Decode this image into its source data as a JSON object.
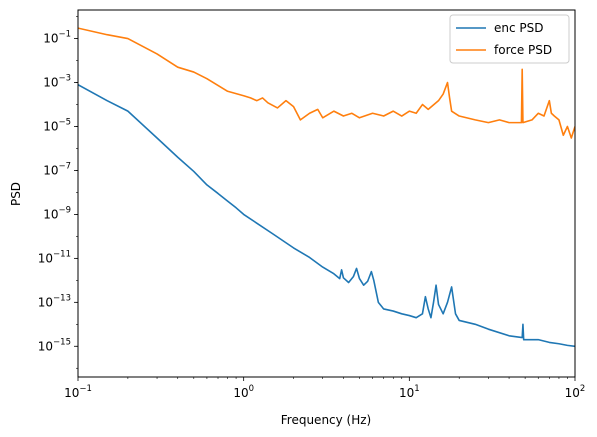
{
  "chart_data": {
    "type": "line",
    "xscale": "log",
    "yscale": "log",
    "xlim": [
      0.1,
      100
    ],
    "ylim": [
      4e-17,
      2
    ],
    "xlabel": "Frequency (Hz)",
    "ylabel": "PSD",
    "grid": false,
    "legend_position": "top-right",
    "x_ticks": [
      {
        "base": "10",
        "exp": "−1",
        "value": 0.1
      },
      {
        "base": "10",
        "exp": "0",
        "value": 1
      },
      {
        "base": "10",
        "exp": "1",
        "value": 10
      },
      {
        "base": "10",
        "exp": "2",
        "value": 100
      }
    ],
    "y_ticks": [
      {
        "base": "10",
        "exp": "−1",
        "value": 0.1
      },
      {
        "base": "10",
        "exp": "−3",
        "value": 0.001
      },
      {
        "base": "10",
        "exp": "−5",
        "value": 1e-05
      },
      {
        "base": "10",
        "exp": "−7",
        "value": 1e-07
      },
      {
        "base": "10",
        "exp": "−9",
        "value": 1e-09
      },
      {
        "base": "10",
        "exp": "−11",
        "value": 1e-11
      },
      {
        "base": "10",
        "exp": "−13",
        "value": 1e-13
      },
      {
        "base": "10",
        "exp": "−15",
        "value": 1e-15
      }
    ],
    "series": [
      {
        "name": "enc PSD",
        "color": "#1f77b4",
        "points": [
          [
            0.1,
            0.0008
          ],
          [
            0.15,
            0.00015
          ],
          [
            0.2,
            5e-05
          ],
          [
            0.3,
            3e-06
          ],
          [
            0.4,
            4e-07
          ],
          [
            0.5,
            9e-08
          ],
          [
            0.6,
            2.2e-08
          ],
          [
            0.7,
            9e-09
          ],
          [
            0.8,
            4e-09
          ],
          [
            0.9,
            2e-09
          ],
          [
            1.0,
            1e-09
          ],
          [
            1.2,
            4e-10
          ],
          [
            1.5,
            1.3e-10
          ],
          [
            2.0,
            3e-11
          ],
          [
            2.5,
            1.1e-11
          ],
          [
            3.0,
            4e-12
          ],
          [
            3.5,
            2e-12
          ],
          [
            3.8,
            1.2e-12
          ],
          [
            3.9,
            3e-12
          ],
          [
            4.0,
            1.3e-12
          ],
          [
            4.3,
            8e-13
          ],
          [
            4.6,
            1.5e-12
          ],
          [
            4.8,
            3.5e-12
          ],
          [
            5.0,
            1.2e-12
          ],
          [
            5.3,
            6e-13
          ],
          [
            5.6,
            9e-13
          ],
          [
            5.9,
            2.5e-12
          ],
          [
            6.1,
            1e-12
          ],
          [
            6.5,
            1e-13
          ],
          [
            7.0,
            5e-14
          ],
          [
            8.0,
            4e-14
          ],
          [
            9.0,
            3e-14
          ],
          [
            10.0,
            2.5e-14
          ],
          [
            11.0,
            2e-14
          ],
          [
            12.0,
            3e-14
          ],
          [
            12.5,
            1.8e-13
          ],
          [
            13.0,
            5e-14
          ],
          [
            13.5,
            2e-14
          ],
          [
            14.0,
            1e-13
          ],
          [
            14.5,
            6e-13
          ],
          [
            15.0,
            8e-14
          ],
          [
            16.0,
            3e-14
          ],
          [
            17.0,
            1e-13
          ],
          [
            18.0,
            5e-13
          ],
          [
            19.0,
            3e-14
          ],
          [
            20.0,
            1.5e-14
          ],
          [
            25.0,
            1e-14
          ],
          [
            30.0,
            6e-15
          ],
          [
            40.0,
            3e-15
          ],
          [
            48.0,
            2.5e-15
          ],
          [
            48.5,
            1e-14
          ],
          [
            49.0,
            2e-15
          ],
          [
            60.0,
            2e-15
          ],
          [
            70.0,
            1.5e-15
          ],
          [
            80.0,
            1.3e-15
          ],
          [
            90.0,
            1.1e-15
          ],
          [
            100.0,
            1e-15
          ]
        ]
      },
      {
        "name": "force PSD",
        "color": "#ff7f0e",
        "points": [
          [
            0.1,
            0.3
          ],
          [
            0.15,
            0.15
          ],
          [
            0.2,
            0.1
          ],
          [
            0.3,
            0.02
          ],
          [
            0.4,
            0.005
          ],
          [
            0.5,
            0.003
          ],
          [
            0.6,
            0.0015
          ],
          [
            0.8,
            0.0004
          ],
          [
            1.0,
            0.00025
          ],
          [
            1.1,
            0.0002
          ],
          [
            1.2,
            0.00015
          ],
          [
            1.3,
            0.0002
          ],
          [
            1.4,
            0.00012
          ],
          [
            1.6,
            7e-05
          ],
          [
            1.8,
            0.00015
          ],
          [
            2.0,
            8e-05
          ],
          [
            2.2,
            2e-05
          ],
          [
            2.5,
            4e-05
          ],
          [
            2.8,
            6e-05
          ],
          [
            3.0,
            2.5e-05
          ],
          [
            3.5,
            5e-05
          ],
          [
            4.0,
            3e-05
          ],
          [
            4.5,
            4e-05
          ],
          [
            5.0,
            2.5e-05
          ],
          [
            6.0,
            4e-05
          ],
          [
            7.0,
            3e-05
          ],
          [
            8.0,
            5e-05
          ],
          [
            9.0,
            3e-05
          ],
          [
            10.0,
            5e-05
          ],
          [
            11.0,
            4e-05
          ],
          [
            12.0,
            0.0001
          ],
          [
            13.0,
            6e-05
          ],
          [
            15.0,
            0.00015
          ],
          [
            16.0,
            0.0003
          ],
          [
            17.0,
            0.001
          ],
          [
            17.5,
            0.0002
          ],
          [
            18.0,
            5e-05
          ],
          [
            20.0,
            3e-05
          ],
          [
            25.0,
            2e-05
          ],
          [
            30.0,
            1.5e-05
          ],
          [
            35.0,
            2e-05
          ],
          [
            40.0,
            1.5e-05
          ],
          [
            45.0,
            1.5e-05
          ],
          [
            47.5,
            1.5e-05
          ],
          [
            48.0,
            0.004
          ],
          [
            48.5,
            1.5e-05
          ],
          [
            55.0,
            2e-05
          ],
          [
            60.0,
            4e-05
          ],
          [
            65.0,
            3e-05
          ],
          [
            70.0,
            0.00015
          ],
          [
            72.0,
            4e-05
          ],
          [
            75.0,
            3e-05
          ],
          [
            80.0,
            2e-05
          ],
          [
            85.0,
            4e-06
          ],
          [
            90.0,
            1e-05
          ],
          [
            95.0,
            3e-06
          ],
          [
            100.0,
            1e-05
          ]
        ]
      }
    ]
  }
}
